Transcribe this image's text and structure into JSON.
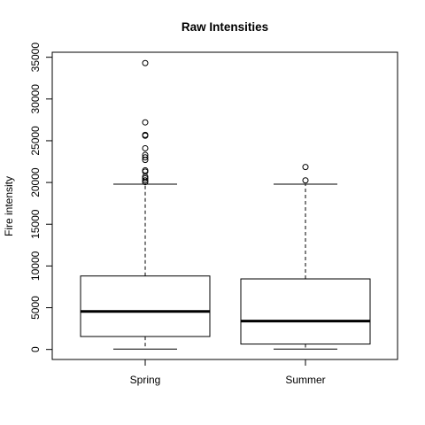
{
  "chart_data": {
    "type": "boxplot",
    "title": "Raw Intensities",
    "xlabel": "",
    "ylabel": "Fire intensity",
    "ylim": [
      -1200,
      35600
    ],
    "y_ticks": [
      0,
      5000,
      10000,
      15000,
      20000,
      25000,
      30000,
      35000
    ],
    "y_tick_labels": [
      "0",
      "5000",
      "10000",
      "15000",
      "20000",
      "25000",
      "30000",
      "35000"
    ],
    "grid": false,
    "legend": "none",
    "categories": [
      "Spring",
      "Summer"
    ],
    "series": [
      {
        "whisker_low": 50,
        "q1": 1550,
        "median": 4550,
        "q3": 8800,
        "whisker_high": 19800,
        "outliers": [
          20050,
          20250,
          20500,
          20700,
          21300,
          21450,
          22700,
          23000,
          23300,
          24100,
          25600,
          25700,
          27200,
          34300
        ]
      },
      {
        "whisker_low": 50,
        "q1": 650,
        "median": 3400,
        "q3": 8450,
        "whisker_high": 19800,
        "outliers": [
          20250,
          21850
        ]
      }
    ]
  }
}
